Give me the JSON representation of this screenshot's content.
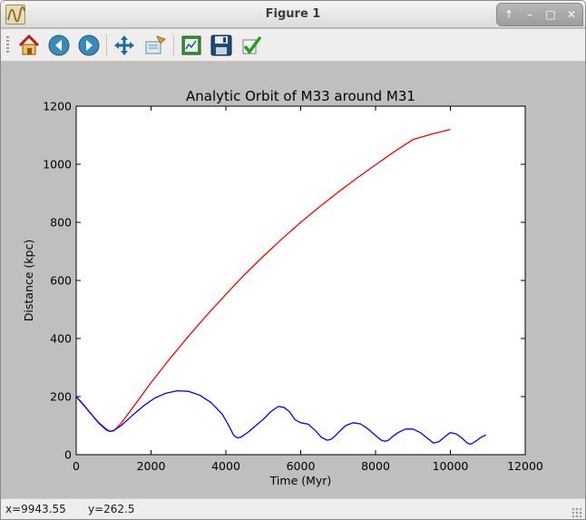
{
  "window": {
    "title": "Figure 1",
    "app_icon": "matplotlib-wave-icon",
    "buttons": [
      "up-icon",
      "minimize-icon",
      "maximize-icon",
      "close-icon"
    ]
  },
  "toolbar": {
    "items": [
      {
        "name": "home-button",
        "icon": "home-icon",
        "tooltip": ""
      },
      {
        "name": "back-button",
        "icon": "arrow-left-icon"
      },
      {
        "name": "forward-button",
        "icon": "arrow-right-icon"
      },
      {
        "name": "pan-button",
        "icon": "move-arrows-icon"
      },
      {
        "name": "zoom-button",
        "icon": "zoom-rect-icon"
      },
      {
        "name": "subplots-button",
        "icon": "configure-subplots-icon"
      },
      {
        "name": "save-button",
        "icon": "floppy-disk-icon"
      },
      {
        "name": "edit-axes-button",
        "icon": "checkmark-icon"
      }
    ]
  },
  "status": {
    "x_readout": "x=9943.55",
    "y_readout": "y=262.5"
  },
  "colors": {
    "figure_bg": "#bfbfbf",
    "axes_bg": "#ffffff",
    "series_red": "#ff0000",
    "series_blue": "#0000ff"
  },
  "chart_data": {
    "type": "line",
    "title": "Analytic Orbit of M33 around M31",
    "xlabel": "Time (Myr)",
    "ylabel": "Distance (kpc)",
    "xlim": [
      0,
      12000
    ],
    "ylim": [
      0,
      1200
    ],
    "xticks": [
      "0",
      "2000",
      "4000",
      "6000",
      "8000",
      "10000",
      "12000"
    ],
    "yticks": [
      "0",
      "200",
      "400",
      "600",
      "800",
      "1000",
      "1200"
    ],
    "grid": false,
    "series": [
      {
        "color": "#ff0000",
        "x": [
          0,
          200,
          400,
          600,
          800,
          900,
          1000,
          1200,
          1500,
          2000,
          2500,
          3000,
          3500,
          4000,
          4500,
          5000,
          5500,
          6000,
          6500,
          7000,
          7500,
          8000,
          8500,
          9000,
          9500,
          10000
        ],
        "y": [
          200,
          172,
          140,
          108,
          85,
          80,
          82,
          108,
          160,
          248,
          330,
          408,
          482,
          552,
          620,
          683,
          743,
          800,
          853,
          904,
          952,
          998,
          1043,
          1085,
          1104,
          1120
        ]
      },
      {
        "color": "#0000ff",
        "x": [
          0,
          200,
          400,
          600,
          800,
          900,
          1000,
          1200,
          1500,
          1800,
          2100,
          2400,
          2700,
          3000,
          3300,
          3600,
          3900,
          4100,
          4200,
          4300,
          4400,
          4600,
          4800,
          5000,
          5200,
          5400,
          5550,
          5700,
          5850,
          6000,
          6200,
          6400,
          6550,
          6700,
          6800,
          6900,
          7050,
          7200,
          7400,
          7600,
          7800,
          8000,
          8150,
          8250,
          8350,
          8450,
          8600,
          8800,
          9000,
          9200,
          9400,
          9550,
          9700,
          9850,
          10000,
          10150,
          10300,
          10450,
          10550,
          10700,
          10800,
          10950
        ],
        "y": [
          200,
          170,
          140,
          110,
          88,
          80,
          83,
          100,
          135,
          168,
          195,
          212,
          220,
          218,
          205,
          180,
          140,
          95,
          68,
          58,
          60,
          78,
          100,
          122,
          148,
          166,
          163,
          148,
          120,
          110,
          105,
          82,
          60,
          50,
          52,
          62,
          82,
          100,
          110,
          106,
          88,
          66,
          50,
          46,
          50,
          62,
          76,
          88,
          88,
          76,
          55,
          40,
          45,
          62,
          76,
          72,
          58,
          40,
          36,
          48,
          58,
          68
        ]
      }
    ]
  }
}
